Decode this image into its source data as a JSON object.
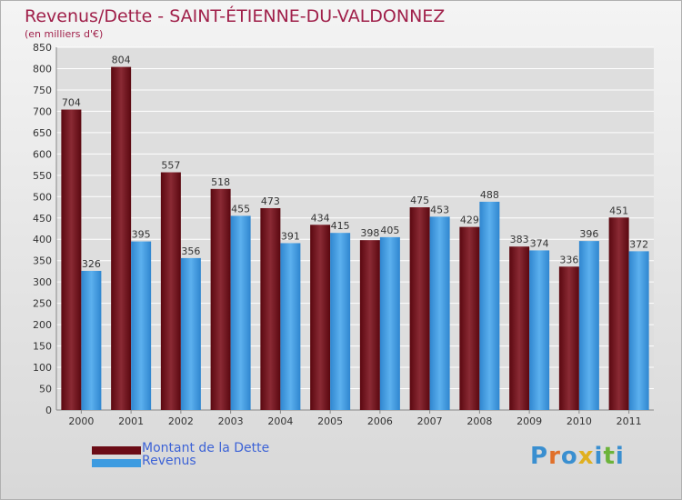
{
  "header": {
    "title": "Revenus/Dette - SAINT-ÉTIENNE-DU-VALDONNEZ",
    "subtitle": "(en milliers d'€)"
  },
  "legend": [
    {
      "label": "Montant de la Dette",
      "color": "#6b0c16"
    },
    {
      "label": "Revenus",
      "color": "#3d9be0"
    }
  ],
  "logo": {
    "text": "Proxiti",
    "colors": [
      "#3a8fd0",
      "#e0702a",
      "#3a8fd0",
      "#e0b020",
      "#3a8fd0",
      "#6cb33a",
      "#3a8fd0"
    ]
  },
  "colors": {
    "dette": "#6b0c16",
    "revenus": "#3d9be0",
    "grid": "#ffffff",
    "axis_text": "#333333"
  },
  "chart_data": {
    "type": "bar",
    "title": "Revenus/Dette - SAINT-ÉTIENNE-DU-VALDONNEZ",
    "ylabel": "(en milliers d'€)",
    "categories": [
      "2000",
      "2001",
      "2002",
      "2003",
      "2004",
      "2005",
      "2006",
      "2007",
      "2008",
      "2009",
      "2010",
      "2011"
    ],
    "series": [
      {
        "name": "Montant de la Dette",
        "values": [
          704,
          804,
          557,
          518,
          473,
          434,
          398,
          475,
          429,
          383,
          336,
          451
        ]
      },
      {
        "name": "Revenus",
        "values": [
          326,
          395,
          356,
          455,
          391,
          415,
          405,
          453,
          488,
          374,
          396,
          372
        ]
      }
    ],
    "ylim": [
      0,
      850
    ],
    "yticks": [
      0,
      50,
      100,
      150,
      200,
      250,
      300,
      350,
      400,
      450,
      500,
      550,
      600,
      650,
      700,
      750,
      800,
      850
    ],
    "grid": true,
    "legend_position": "bottom-left"
  }
}
